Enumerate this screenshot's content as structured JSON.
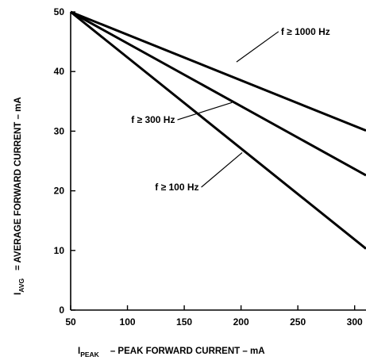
{
  "chart_data": {
    "type": "line",
    "xlabel": {
      "main": "I",
      "sub": "PEAK",
      "text": "– PEAK FORWARD CURRENT – mA"
    },
    "ylabel": {
      "main": "I",
      "sub": "AVG",
      "text": "= AVERAGE FORWARD CURRENT – mA"
    },
    "xlim": [
      50,
      310
    ],
    "ylim": [
      0,
      50
    ],
    "x_ticks": [
      50,
      100,
      150,
      200,
      250,
      300
    ],
    "y_ticks": [
      0,
      10,
      20,
      30,
      40,
      50
    ],
    "grid": false,
    "series": [
      {
        "name": "f ≥ 1000 Hz",
        "x": [
          50,
          310
        ],
        "y": [
          50,
          30.1
        ]
      },
      {
        "name": "f ≥ 300 Hz",
        "x": [
          50,
          310
        ],
        "y": [
          50,
          22.6
        ]
      },
      {
        "name": "f ≥ 100 Hz",
        "x": [
          50,
          310
        ],
        "y": [
          50,
          10.3
        ]
      }
    ],
    "annotations": [
      {
        "text": "f ≥ 1000 Hz",
        "leader_from": [
          196,
          41.6
        ],
        "leader_to": [
          233,
          46.7
        ]
      },
      {
        "text": "f ≥ 300 Hz",
        "leader_from": [
          192,
          34.8
        ],
        "leader_to": [
          144,
          31.9
        ]
      },
      {
        "text": "f ≥ 100 Hz",
        "leader_from": [
          201,
          26.4
        ],
        "leader_to": [
          165,
          20.6
        ]
      }
    ]
  }
}
